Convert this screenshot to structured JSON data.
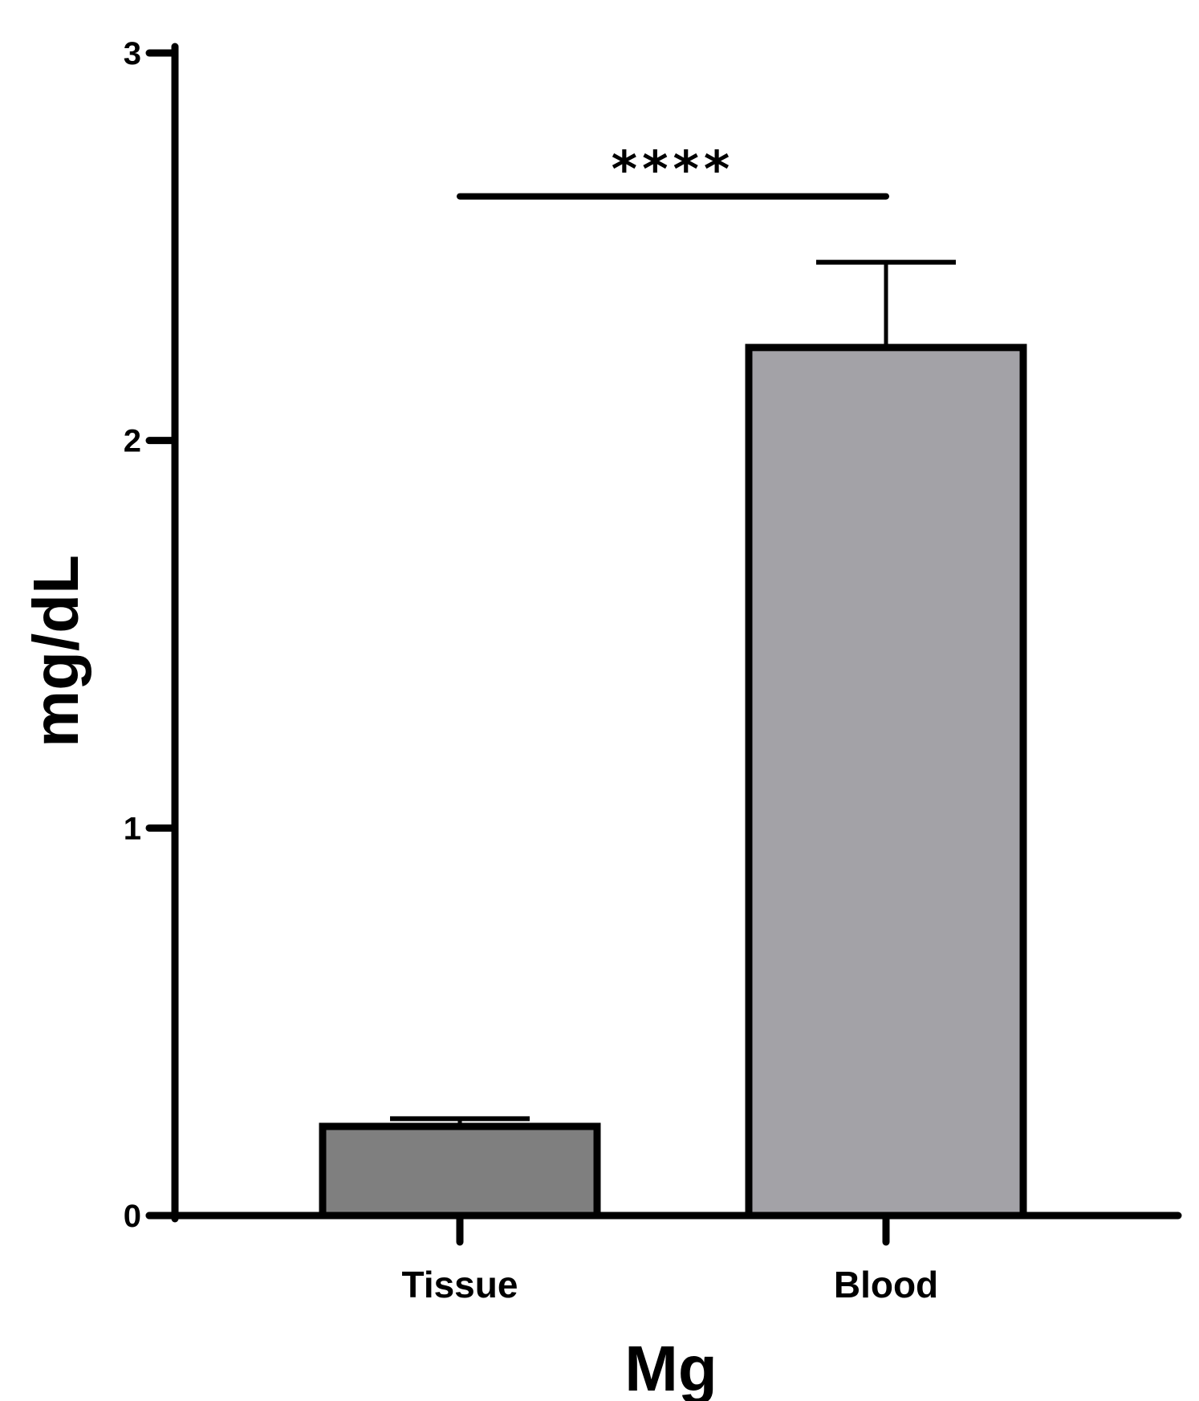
{
  "chart_data": {
    "type": "bar",
    "categories": [
      "Tissue",
      "Blood"
    ],
    "values": [
      0.23,
      2.24
    ],
    "error_upper": [
      0.25,
      2.46
    ],
    "colors": [
      "#7f7f7f",
      "#a3a2a7"
    ],
    "xlabel": "Mg",
    "ylabel": "mg/dL",
    "ylim": [
      0,
      3
    ],
    "yticks": [
      "0",
      "1",
      "2",
      "3"
    ],
    "grid": false,
    "significance": {
      "label": "****",
      "between": [
        "Tissue",
        "Blood"
      ],
      "y": 2.63
    }
  }
}
